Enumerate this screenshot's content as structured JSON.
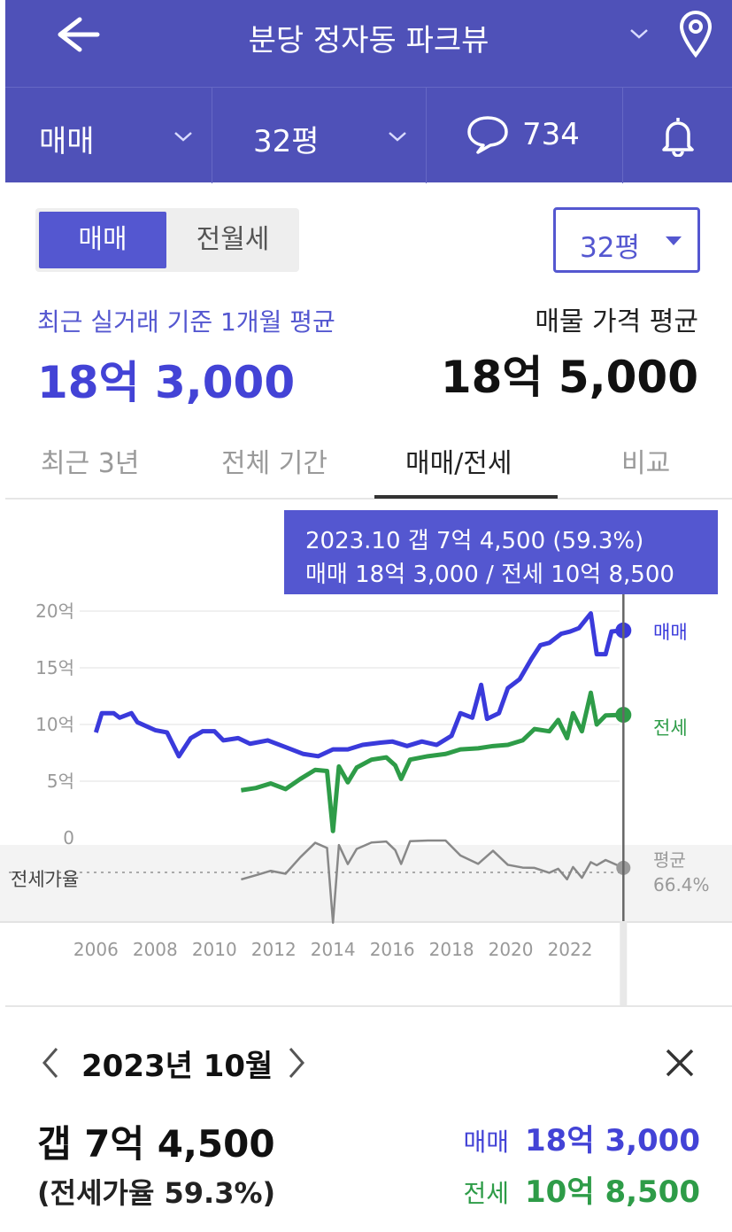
{
  "header": {
    "title": "분당 정자동 파크뷰"
  },
  "subbar": {
    "trade_type": "매매",
    "size": "32평",
    "comment_count": "734"
  },
  "segment": {
    "active": "매매",
    "inactive": "전월세"
  },
  "size_select": {
    "value": "32평"
  },
  "summary": {
    "recent_label": "최근 실거래 기준 1개월 평균",
    "recent_value": "18억 3,000",
    "listing_label": "매물 가격 평균",
    "listing_value": "18억 5,000"
  },
  "tabs": [
    {
      "label": "최근 3년"
    },
    {
      "label": "전체 기간"
    },
    {
      "label": "매매/전세"
    },
    {
      "label": "비교"
    }
  ],
  "tooltip": {
    "line1": "2023.10  갭 7억 4,500 (59.3%)",
    "line2": "매매 18억 3,000 / 전세 10억 8,500"
  },
  "colors": {
    "brand": "#4F51B8",
    "accent": "#5457D0",
    "sale": "#3A3ADB",
    "jeonse": "#2E9C48",
    "ratio": "#888888"
  },
  "chart_data": {
    "type": "line",
    "x_ticks": [
      "2006",
      "2008",
      "2010",
      "2012",
      "2014",
      "2016",
      "2018",
      "2020",
      "2022"
    ],
    "y_ticks": [
      "0",
      "5억",
      "10억",
      "15억",
      "20억"
    ],
    "ylim": [
      0,
      20
    ],
    "xlim": [
      2005.9,
      2024.0
    ],
    "series": [
      {
        "name": "매매",
        "points": [
          [
            2006.0,
            9.3
          ],
          [
            2006.2,
            11.0
          ],
          [
            2006.6,
            11.0
          ],
          [
            2006.8,
            10.6
          ],
          [
            2007.2,
            11.0
          ],
          [
            2007.4,
            10.2
          ],
          [
            2008.0,
            9.5
          ],
          [
            2008.4,
            9.3
          ],
          [
            2008.8,
            7.2
          ],
          [
            2009.2,
            8.8
          ],
          [
            2009.6,
            9.4
          ],
          [
            2010.0,
            9.4
          ],
          [
            2010.3,
            8.6
          ],
          [
            2010.8,
            8.8
          ],
          [
            2011.2,
            8.3
          ],
          [
            2011.8,
            8.6
          ],
          [
            2012.4,
            8.0
          ],
          [
            2013.0,
            7.4
          ],
          [
            2013.5,
            7.2
          ],
          [
            2014.0,
            7.8
          ],
          [
            2014.5,
            7.8
          ],
          [
            2015.0,
            8.2
          ],
          [
            2015.6,
            8.4
          ],
          [
            2016.0,
            8.5
          ],
          [
            2016.5,
            8.1
          ],
          [
            2017.0,
            8.5
          ],
          [
            2017.5,
            8.2
          ],
          [
            2018.0,
            9.0
          ],
          [
            2018.3,
            11.0
          ],
          [
            2018.7,
            10.6
          ],
          [
            2019.0,
            13.5
          ],
          [
            2019.2,
            10.5
          ],
          [
            2019.6,
            11.0
          ],
          [
            2019.9,
            13.2
          ],
          [
            2020.3,
            14.0
          ],
          [
            2020.7,
            15.8
          ],
          [
            2021.0,
            17.0
          ],
          [
            2021.3,
            17.2
          ],
          [
            2021.7,
            18.0
          ],
          [
            2022.0,
            18.2
          ],
          [
            2022.3,
            18.5
          ],
          [
            2022.7,
            19.8
          ],
          [
            2022.9,
            16.2
          ],
          [
            2023.2,
            16.2
          ],
          [
            2023.4,
            18.2
          ],
          [
            2023.8,
            18.3
          ]
        ]
      },
      {
        "name": "전세",
        "points": [
          [
            2010.9,
            4.2
          ],
          [
            2011.4,
            4.4
          ],
          [
            2011.9,
            4.8
          ],
          [
            2012.4,
            4.3
          ],
          [
            2012.9,
            5.2
          ],
          [
            2013.4,
            6.0
          ],
          [
            2013.8,
            5.9
          ],
          [
            2014.0,
            0.6
          ],
          [
            2014.2,
            6.3
          ],
          [
            2014.5,
            4.9
          ],
          [
            2014.8,
            6.2
          ],
          [
            2015.3,
            6.9
          ],
          [
            2015.8,
            7.1
          ],
          [
            2016.1,
            6.4
          ],
          [
            2016.3,
            5.2
          ],
          [
            2016.6,
            6.9
          ],
          [
            2017.2,
            7.2
          ],
          [
            2017.8,
            7.4
          ],
          [
            2018.3,
            7.8
          ],
          [
            2018.9,
            7.9
          ],
          [
            2019.4,
            8.1
          ],
          [
            2019.9,
            8.2
          ],
          [
            2020.4,
            8.6
          ],
          [
            2020.8,
            9.6
          ],
          [
            2021.3,
            9.4
          ],
          [
            2021.6,
            10.4
          ],
          [
            2021.9,
            8.8
          ],
          [
            2022.1,
            11.0
          ],
          [
            2022.4,
            9.4
          ],
          [
            2022.7,
            12.8
          ],
          [
            2022.9,
            10.0
          ],
          [
            2023.2,
            10.8
          ],
          [
            2023.8,
            10.85
          ]
        ]
      }
    ],
    "end_labels": {
      "sale": "매매",
      "jeonse": "전세"
    },
    "ratio_panel": {
      "label": "전세가율",
      "avg_label": "평균",
      "avg_value": "66.4%"
    }
  },
  "detail": {
    "date": "2023년 10월",
    "gap": "갭 7억 4,500",
    "ratio": "(전세가율 59.3%)",
    "sale_label": "매매",
    "sale_value": "18억 3,000",
    "jeonse_label": "전세",
    "jeonse_value": "10억 8,500"
  }
}
